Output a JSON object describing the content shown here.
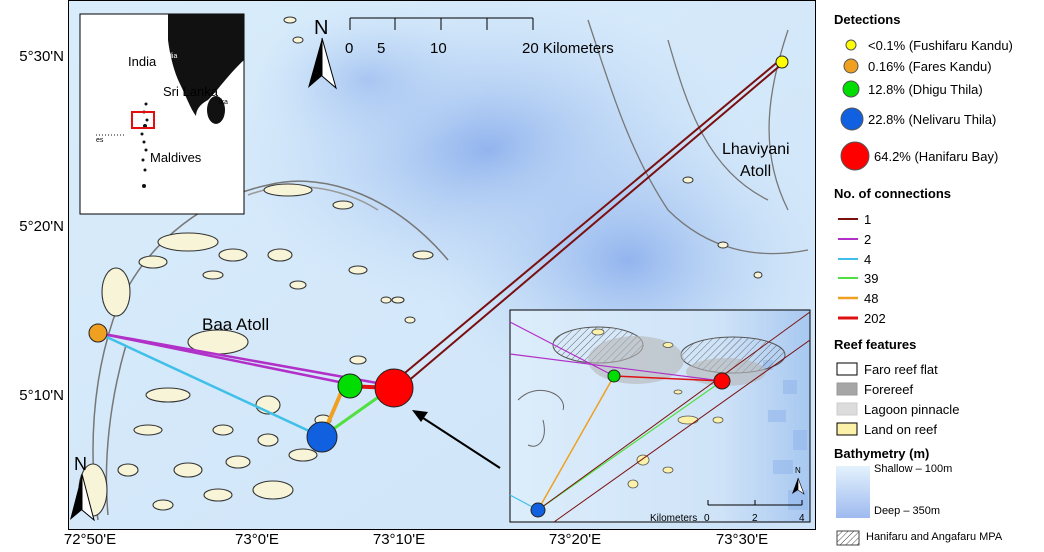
{
  "map": {
    "atoll_labels": {
      "baa": "Baa Atoll",
      "lhaviyani_1": "Lhaviyani",
      "lhaviyani_2": "Atoll"
    },
    "north_label": "N",
    "scalebar": {
      "ticks": [
        "0",
        "5",
        "10",
        "20 Kilometers"
      ]
    },
    "lat_labels": [
      "5°30'N",
      "5°20'N",
      "5°10'N"
    ],
    "lon_labels": [
      "72°50'E",
      "73°0'E",
      "73°10'E",
      "73°20'E",
      "73°30'E"
    ],
    "inset_overview": {
      "india": "India",
      "india_small": "dia",
      "sri_lanka": "Sri Lanka",
      "sri_lanka_small": "ika",
      "maldives": "Maldives",
      "es_small": "es"
    },
    "inset_detail": {
      "north_label": "N",
      "scalebar": {
        "label": "Kilometers",
        "ticks": [
          "0",
          "2",
          "4"
        ]
      }
    }
  },
  "sites": [
    {
      "name": "Fushifaru Kandu",
      "detection_pct": "<0.1%",
      "color": "#ffff00"
    },
    {
      "name": "Fares Kandu",
      "detection_pct": "0.16%",
      "color": "#f0a020"
    },
    {
      "name": "Dhigu Thila",
      "detection_pct": "12.8%",
      "color": "#00dd00"
    },
    {
      "name": "Nelivaru Thila",
      "detection_pct": "22.8%",
      "color": "#1060e0"
    },
    {
      "name": "Hanifaru Bay",
      "detection_pct": "64.2%",
      "color": "#ff0000"
    }
  ],
  "legend": {
    "detections_title": "Detections",
    "detections": [
      "<0.1% (Fushifaru Kandu)",
      "0.16% (Fares Kandu)",
      "12.8% (Dhigu Thila)",
      "22.8% (Nelivaru Thila)",
      "64.2% (Hanifaru Bay)"
    ],
    "connections_title": "No. of connections",
    "connections": [
      {
        "label": "1",
        "color": "#7a1010"
      },
      {
        "label": "2",
        "color": "#b030c8"
      },
      {
        "label": "4",
        "color": "#40c0e8"
      },
      {
        "label": "39",
        "color": "#50e040"
      },
      {
        "label": "48",
        "color": "#f0a020"
      },
      {
        "label": "202",
        "color": "#e01010"
      }
    ],
    "reef_title": "Reef features",
    "reef": [
      "Faro reef flat",
      "Forereef",
      "Lagoon pinnacle",
      "Land on reef"
    ],
    "bathy_title": "Bathymetry  (m)",
    "bathy_shallow": "Shallow – 100m",
    "bathy_deep": "Deep – 350m",
    "mpa": "Hanifaru and Angafaru MPA"
  }
}
